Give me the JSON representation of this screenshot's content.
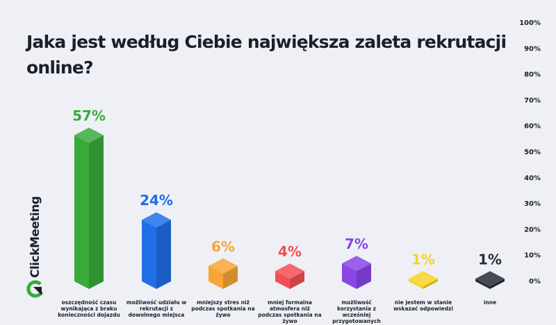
{
  "colors": {
    "background": "#eef0f5",
    "text": "#1c1f2a"
  },
  "brand": {
    "name": "ClickMeeting",
    "logo_color": "#3aaa3a"
  },
  "chart_data": {
    "type": "bar",
    "style": "3d-column",
    "title": "Jaka jest według Ciebie największa zaleta rekrutacji online?",
    "categories": [
      "oszczędność czasu wynikająca z braku konieczności dojazdu",
      "możliwość udziału w rekrutacji z dowolnego miejsca",
      "mniejszy stres niż podczas spotkania na żywo",
      "mniej formalna atmosfera niż podczas spotkania na żywo",
      "możliwość korzystania z wcześniej przygotowanych notatek",
      "nie jestem w stanie wskazać odpowiedzi",
      "inne"
    ],
    "values": [
      57,
      24,
      6,
      4,
      7,
      1,
      1
    ],
    "data_labels": [
      "57%",
      "24%",
      "6%",
      "4%",
      "7%",
      "1%",
      "1%"
    ],
    "colors": [
      "#3aaa3a",
      "#1f6fe6",
      "#f7a533",
      "#f24f55",
      "#8a45e6",
      "#f5d323",
      "#262b38"
    ],
    "ylim": [
      0,
      100
    ],
    "yticks": [
      "0%",
      "10%",
      "20%",
      "30%",
      "40%",
      "50%",
      "60%",
      "70%",
      "80%",
      "90%",
      "100%"
    ],
    "yaxis_position": "right",
    "grid": false,
    "xlabel": "",
    "ylabel": ""
  }
}
